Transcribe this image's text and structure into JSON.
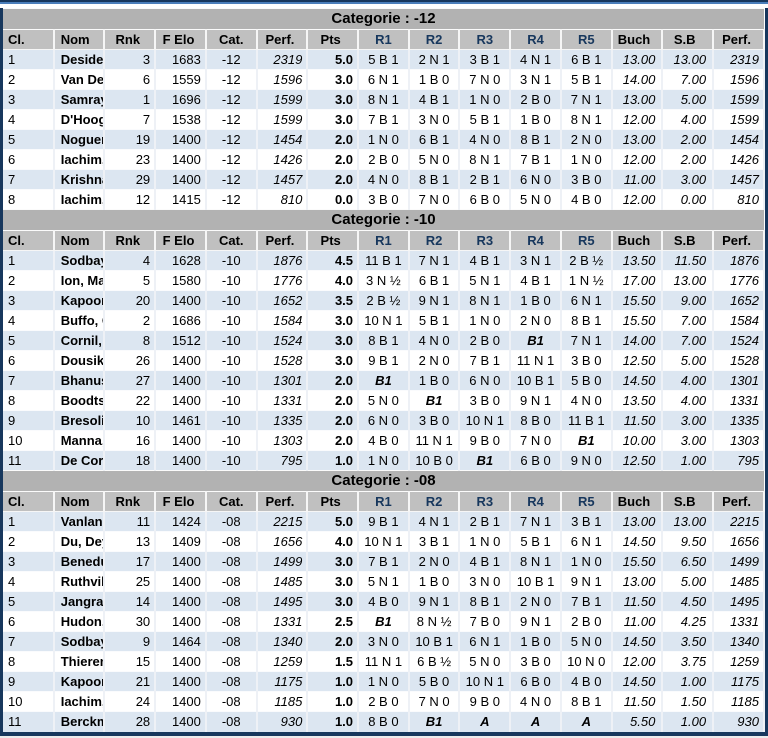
{
  "colors": {
    "frame_navy": "#17375d",
    "accent_blue": "#4a7ebb",
    "category_band": "#b2b2b2",
    "column_header": "#c0c0c0",
    "alt_row_blue": "#dce6f1",
    "round_header_text": "#17375d"
  },
  "columns": [
    "Cl.",
    "Nom",
    "Rnk",
    "F Elo",
    "Cat.",
    "Perf.",
    "Pts",
    "R1",
    "R2",
    "R3",
    "R4",
    "R5",
    "Buch",
    "S.B",
    "Perf."
  ],
  "sections": [
    {
      "title": "Categorie : -12",
      "rows": [
        [
          "1",
          "Deside, Anthony",
          "3",
          "1683",
          "-12",
          "2319",
          "5.0",
          "5 B 1",
          "2 N 1",
          "3 B 1",
          "4 N 1",
          "6 B 1",
          "13.00",
          "13.00",
          "2319"
        ],
        [
          "2",
          "Van De Westelaken, Stefan",
          "6",
          "1559",
          "-12",
          "1596",
          "3.0",
          "6 N 1",
          "1 B 0",
          "7 N 0",
          "3 N 1",
          "5 B 1",
          "14.00",
          "7.00",
          "1596"
        ],
        [
          "3",
          "Samray, Boris",
          "1",
          "1696",
          "-12",
          "1599",
          "3.0",
          "8 N 1",
          "4 B 1",
          "1 N 0",
          "2 B 0",
          "7 N 1",
          "13.00",
          "5.00",
          "1599"
        ],
        [
          "4",
          "D'Hooghe, Oscar",
          "7",
          "1538",
          "-12",
          "1599",
          "3.0",
          "7 B 1",
          "3 N 0",
          "5 B 1",
          "1 B 0",
          "8 N 1",
          "12.00",
          "4.00",
          "1599"
        ],
        [
          "5",
          "Noguera, Sebastian",
          "19",
          "1400",
          "-12",
          "1454",
          "2.0",
          "1 N 0",
          "6 B 1",
          "4 N 0",
          "8 B 1",
          "2 N 0",
          "13.00",
          "2.00",
          "1454"
        ],
        [
          "6",
          "Iachim, Odeliu",
          "23",
          "1400",
          "-12",
          "1426",
          "2.0",
          "2 B 0",
          "5 N 0",
          "8 N 1",
          "7 B 1",
          "1 N 0",
          "12.00",
          "2.00",
          "1426"
        ],
        [
          "7",
          "Krishnakumar Preetha, Pranav",
          "29",
          "1400",
          "-12",
          "1457",
          "2.0",
          "4 N 0",
          "8 B 1",
          "2 B 1",
          "6 N 0",
          "3 B 0",
          "11.00",
          "3.00",
          "1457"
        ],
        [
          "8",
          "Iachim, Olegiu",
          "12",
          "1415",
          "-12",
          "810",
          "0.0",
          "3 B 0",
          "7 N 0",
          "6 B 0",
          "5 N 0",
          "4 B 0",
          "12.00",
          "0.00",
          "810"
        ]
      ]
    },
    {
      "title": "Categorie : -10",
      "rows": [
        [
          "1",
          "Sodbayar, Irmuun",
          "4",
          "1628",
          "-10",
          "1876",
          "4.5",
          "11 B 1",
          "7 N 1",
          "4 B 1",
          "3 N 1",
          "2 B ½",
          "13.50",
          "11.50",
          "1876"
        ],
        [
          "2",
          "Ion, Marcel-Trestieni",
          "5",
          "1580",
          "-10",
          "1776",
          "4.0",
          "3 N ½",
          "6 B 1",
          "5 N 1",
          "4 B 1",
          "1 N ½",
          "17.00",
          "13.00",
          "1776"
        ],
        [
          "3",
          "Kapoor, Viaan",
          "20",
          "1400",
          "-10",
          "1652",
          "3.5",
          "2 B ½",
          "9 N 1",
          "8 N 1",
          "1 B 0",
          "6 N 1",
          "15.50",
          "9.00",
          "1652"
        ],
        [
          "4",
          "Buffo, Ottavio",
          "2",
          "1686",
          "-10",
          "1584",
          "3.0",
          "10 N 1",
          "5 B 1",
          "1 N 0",
          "2 N 0",
          "8 B 1",
          "15.50",
          "7.00",
          "1584"
        ],
        [
          "5",
          "Cornil, Claire",
          "8",
          "1512",
          "-10",
          "1524",
          "3.0",
          "8 B 1",
          "4 N 0",
          "2 B 0",
          "B1",
          "7 N 1",
          "14.00",
          "7.00",
          "1524"
        ],
        [
          "6",
          "Dousik, Vatsa",
          "26",
          "1400",
          "-10",
          "1528",
          "3.0",
          "9 B 1",
          "2 N 0",
          "7 B 1",
          "11 N 1",
          "3 B 0",
          "12.50",
          "5.00",
          "1528"
        ],
        [
          "7",
          "Bhanushali, Hiyaan Deepak",
          "27",
          "1400",
          "-10",
          "1301",
          "2.0",
          "B1",
          "1 B 0",
          "6 N 0",
          "10 B 1",
          "5 B 0",
          "14.50",
          "4.00",
          "1301"
        ],
        [
          "8",
          "Boodts, Vic",
          "22",
          "1400",
          "-10",
          "1331",
          "2.0",
          "5 N 0",
          "B1",
          "3 B 0",
          "9 N 1",
          "4 N 0",
          "13.50",
          "4.00",
          "1331"
        ],
        [
          "9",
          "Bresolin, Diego",
          "10",
          "1461",
          "-10",
          "1335",
          "2.0",
          "6 N 0",
          "3 B 0",
          "10 N 1",
          "8 B 0",
          "11 B 1",
          "11.50",
          "3.00",
          "1335"
        ],
        [
          "10",
          "Manna, Shreyan",
          "16",
          "1400",
          "-10",
          "1303",
          "2.0",
          "4 B 0",
          "11 N 1",
          "9 B 0",
          "7 N 0",
          "B1",
          "10.00",
          "3.00",
          "1303"
        ],
        [
          "11",
          "De Corte, Mithila",
          "18",
          "1400",
          "-10",
          "795",
          "1.0",
          "1 N 0",
          "10 B 0",
          "B1",
          "6 B 0",
          "9 N 0",
          "12.50",
          "1.00",
          "795"
        ]
      ]
    },
    {
      "title": "Categorie : -08",
      "rows": [
        [
          "1",
          "Vanlancker, Theodore",
          "11",
          "1424",
          "-08",
          "2215",
          "5.0",
          "9 B 1",
          "4 N 1",
          "2 B 1",
          "7 N 1",
          "3 B 1",
          "13.00",
          "13.00",
          "2215"
        ],
        [
          "2",
          "Du, Deyi",
          "13",
          "1409",
          "-08",
          "1656",
          "4.0",
          "10 N 1",
          "3 B 1",
          "1 N 0",
          "5 B 1",
          "6 N 1",
          "14.50",
          "9.50",
          "1656"
        ],
        [
          "3",
          "Beneduce, Umberto",
          "17",
          "1400",
          "-08",
          "1499",
          "3.0",
          "7 B 1",
          "2 N 0",
          "4 B 1",
          "8 N 1",
          "1 N 0",
          "15.50",
          "6.50",
          "1499"
        ],
        [
          "4",
          "Ruthvik, Thoppe Shyam Prasad",
          "25",
          "1400",
          "-08",
          "1485",
          "3.0",
          "5 N 1",
          "1 B 0",
          "3 N 0",
          "10 B 1",
          "9 N 1",
          "13.00",
          "5.00",
          "1485"
        ],
        [
          "5",
          "Jangra, Aarav",
          "14",
          "1400",
          "-08",
          "1495",
          "3.0",
          "4 B 0",
          "9 N 1",
          "8 B 1",
          "2 N 0",
          "7 B 1",
          "11.50",
          "4.50",
          "1495"
        ],
        [
          "6",
          "Hudon, Aurian",
          "30",
          "1400",
          "-08",
          "1331",
          "2.5",
          "B1",
          "8 N ½",
          "7 B 0",
          "9 N 1",
          "2 B 0",
          "11.00",
          "4.25",
          "1331"
        ],
        [
          "7",
          "Sodbayar, Nomingoo",
          "9",
          "1464",
          "-08",
          "1340",
          "2.0",
          "3 N 0",
          "10 B 1",
          "6 N 1",
          "1 B 0",
          "5 N 0",
          "14.50",
          "3.50",
          "1340"
        ],
        [
          "8",
          "Thierens Legrand, Manea",
          "15",
          "1400",
          "-08",
          "1259",
          "1.5",
          "11 N 1",
          "6 B ½",
          "5 N 0",
          "3 B 0",
          "10 N 0",
          "12.00",
          "3.75",
          "1259"
        ],
        [
          "9",
          "Kapoor, Amyra",
          "21",
          "1400",
          "-08",
          "1175",
          "1.0",
          "1 N 0",
          "5 B 0",
          "10 N 1",
          "6 B 0",
          "4 B 0",
          "14.50",
          "1.00",
          "1175"
        ],
        [
          "10",
          "Iachim, Angeliu",
          "24",
          "1400",
          "-08",
          "1185",
          "1.0",
          "2 B 0",
          "7 N 0",
          "9 B 0",
          "4 N 0",
          "8 B 1",
          "11.50",
          "1.50",
          "1185"
        ],
        [
          "11",
          "Berckmans, Saule",
          "28",
          "1400",
          "-08",
          "930",
          "1.0",
          "8 B 0",
          "B1",
          "A",
          "A",
          "A",
          "5.50",
          "1.00",
          "930"
        ]
      ]
    }
  ]
}
